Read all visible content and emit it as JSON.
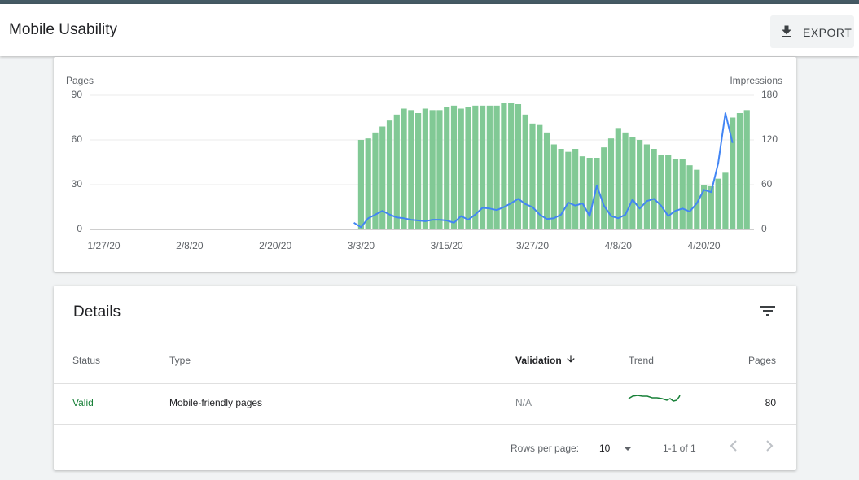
{
  "header": {
    "title": "Mobile Usability",
    "export": "EXPORT"
  },
  "chart_data": {
    "type": "combo",
    "x": [
      "3/2/20",
      "3/3/20",
      "3/4/20",
      "3/5/20",
      "3/6/20",
      "3/7/20",
      "3/8/20",
      "3/9/20",
      "3/10/20",
      "3/11/20",
      "3/12/20",
      "3/13/20",
      "3/14/20",
      "3/15/20",
      "3/16/20",
      "3/17/20",
      "3/18/20",
      "3/19/20",
      "3/20/20",
      "3/21/20",
      "3/22/20",
      "3/23/20",
      "3/24/20",
      "3/25/20",
      "3/26/20",
      "3/27/20",
      "3/28/20",
      "3/29/20",
      "3/30/20",
      "3/31/20",
      "4/1/20",
      "4/2/20",
      "4/3/20",
      "4/4/20",
      "4/5/20",
      "4/6/20",
      "4/7/20",
      "4/8/20",
      "4/9/20",
      "4/10/20",
      "4/11/20",
      "4/12/20",
      "4/13/20",
      "4/14/20",
      "4/15/20",
      "4/16/20",
      "4/17/20",
      "4/18/20",
      "4/19/20",
      "4/20/20",
      "4/21/20",
      "4/22/20",
      "4/23/20",
      "4/24/20",
      "4/25/20",
      "4/26/20"
    ],
    "series": [
      {
        "name": "Pages",
        "type": "bar",
        "color": "#81c995",
        "values": [
          null,
          60,
          61,
          65,
          69,
          73,
          77,
          81,
          80,
          78,
          81,
          80,
          80,
          82,
          83,
          81,
          82,
          83,
          83,
          83,
          83,
          85,
          85,
          84,
          77,
          71,
          70,
          65,
          57,
          54,
          52,
          54,
          49,
          48,
          48,
          55,
          61,
          68,
          65,
          62,
          60,
          57,
          54,
          50,
          50,
          47,
          47,
          43,
          40,
          30,
          29,
          34,
          38,
          75,
          78,
          80
        ]
      },
      {
        "name": "Impressions",
        "type": "line",
        "axis": "y2",
        "color": "#4285f4",
        "values": [
          9,
          3,
          15,
          20,
          25,
          20,
          16,
          15,
          13,
          12,
          11,
          13,
          13,
          12,
          9,
          18,
          13,
          20,
          29,
          28,
          26,
          30,
          35,
          41,
          34,
          30,
          20,
          14,
          15,
          20,
          36,
          32,
          35,
          18,
          59,
          32,
          18,
          15,
          20,
          40,
          28,
          38,
          41,
          32,
          18,
          25,
          28,
          24,
          35,
          53,
          50,
          89,
          156,
          116,
          null,
          null
        ]
      }
    ],
    "xlim": [
      "1/25/20",
      "4/27/20"
    ],
    "xticks": [
      "1/27/20",
      "2/8/20",
      "2/20/20",
      "3/3/20",
      "3/15/20",
      "3/27/20",
      "4/8/20",
      "4/20/20"
    ],
    "ylim": [
      0,
      90
    ],
    "yticks": [
      0,
      30,
      60,
      90
    ],
    "y2lim": [
      0,
      180
    ],
    "y2ticks": [
      0,
      60,
      120,
      180
    ],
    "grid": true
  },
  "details": {
    "title": "Details",
    "columns": [
      "Status",
      "Type",
      "Validation",
      "Trend",
      "Pages"
    ],
    "rows": [
      {
        "status": "Valid",
        "type": "Mobile-friendly pages",
        "validation": "N/A",
        "pages": 80
      }
    ],
    "footer": {
      "rows_per_page_label": "Rows per page:",
      "rows_per_page": 10,
      "range": "1-1 of 1"
    }
  }
}
